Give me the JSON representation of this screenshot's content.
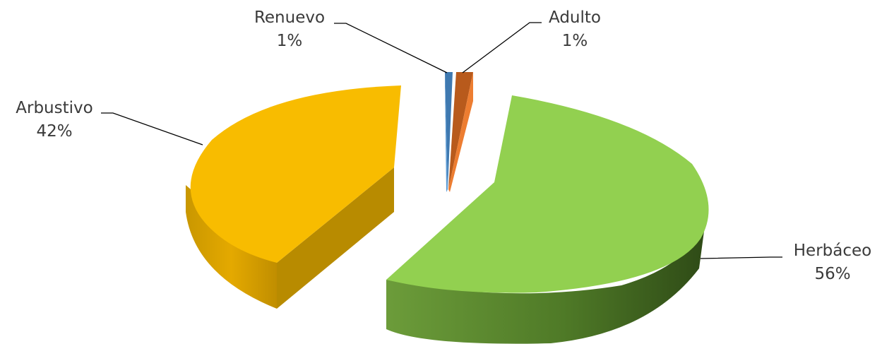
{
  "chart_data": {
    "type": "pie",
    "style": "3d-exploded",
    "title": "",
    "legend": "none (category labels next to slices)",
    "slices": [
      {
        "label": "Renuevo",
        "value": 1,
        "display": "1%",
        "color": "#5b9bd5"
      },
      {
        "label": "Adulto",
        "value": 1,
        "display": "1%",
        "color": "#ed7d31"
      },
      {
        "label": "Herbáceo",
        "value": 56,
        "display": "56%",
        "color": "#92d050"
      },
      {
        "label": "Arbustivo",
        "value": 42,
        "display": "42%",
        "color": "#f8bc00"
      }
    ]
  }
}
